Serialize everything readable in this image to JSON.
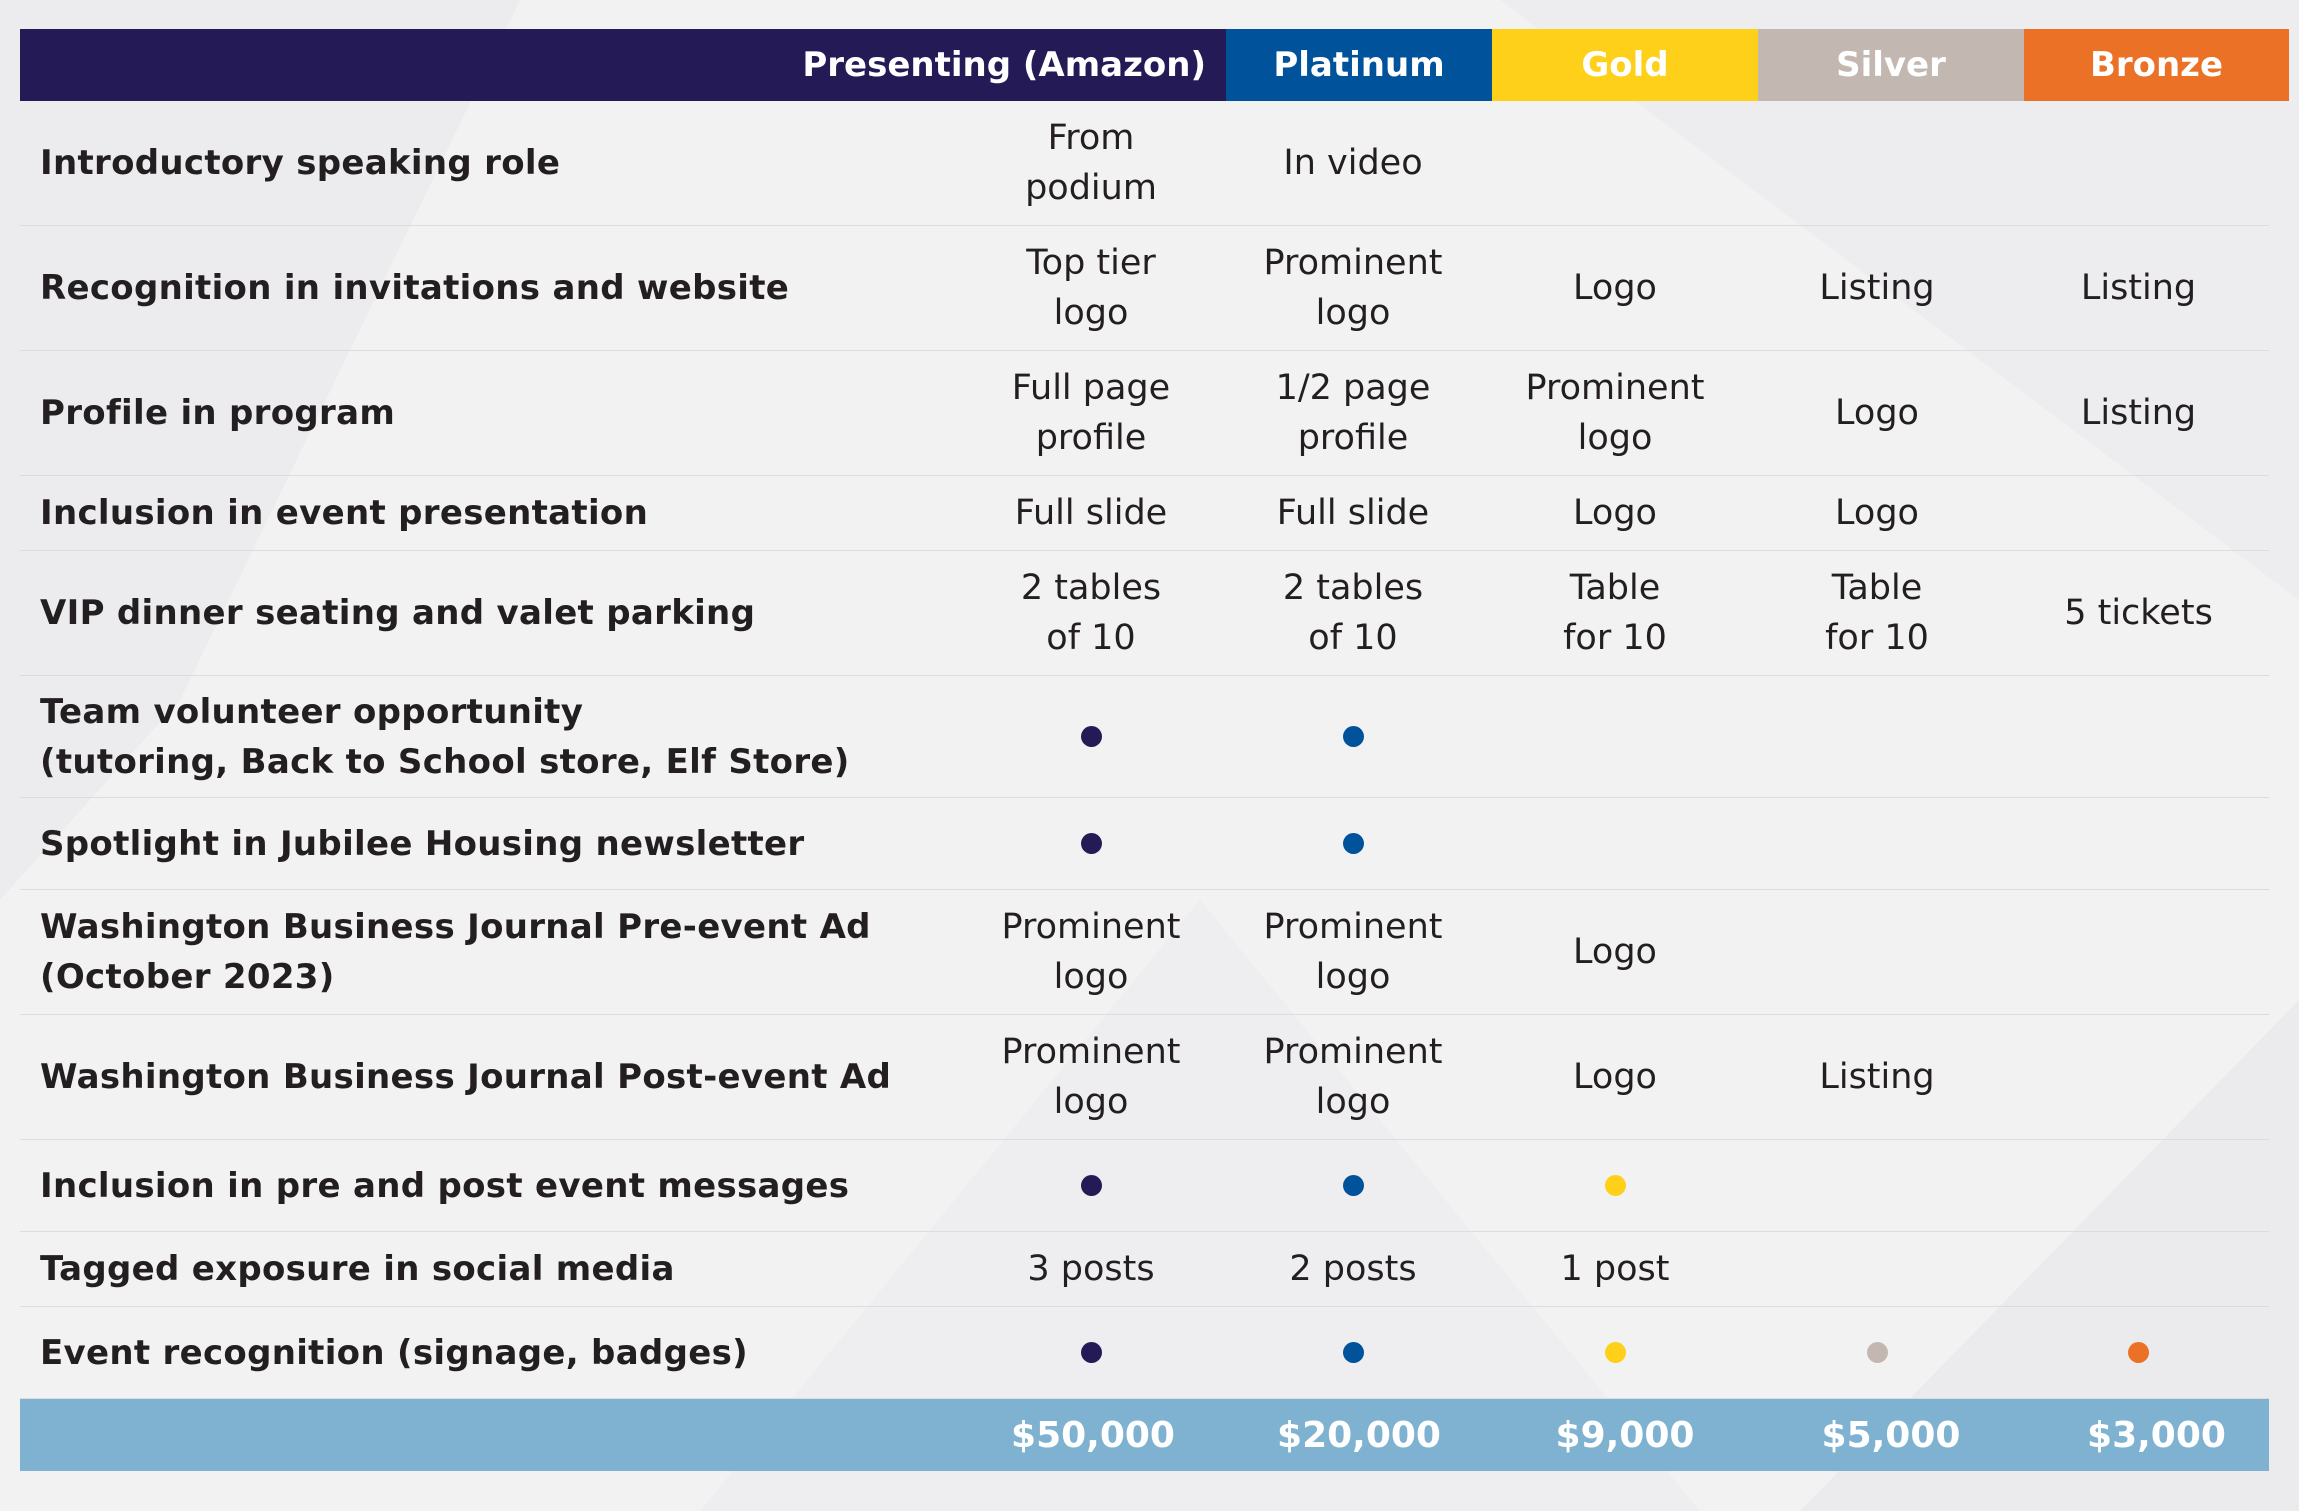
{
  "tiers": [
    {
      "key": "presenting",
      "label": "Presenting (Amazon)",
      "color": "#241a56",
      "price": "$50,000"
    },
    {
      "key": "platinum",
      "label": "Platinum",
      "color": "#00529b",
      "price": "$20,000"
    },
    {
      "key": "gold",
      "label": "Gold",
      "color": "#ffd01a",
      "price": "$9,000"
    },
    {
      "key": "silver",
      "label": "Silver",
      "color": "#c3b8b1",
      "price": "$5,000"
    },
    {
      "key": "bronze",
      "label": "Bronze",
      "color": "#ea7125",
      "price": "$3,000"
    }
  ],
  "rows": [
    {
      "label": "Introductory speaking role",
      "cells": [
        "From\npodium",
        "In video",
        "",
        "",
        ""
      ]
    },
    {
      "label": "Recognition in invitations and website",
      "cells": [
        "Top tier\nlogo",
        "Prominent\nlogo",
        "Logo",
        "Listing",
        "Listing"
      ]
    },
    {
      "label": "Profile in program",
      "cells": [
        "Full page\nprofile",
        "1/2 page\nprofile",
        "Prominent\nlogo",
        "Logo",
        "Listing"
      ]
    },
    {
      "label": "Inclusion in event presentation",
      "cells": [
        "Full slide",
        "Full slide",
        "Logo",
        "Logo",
        ""
      ]
    },
    {
      "label": "VIP dinner seating and valet parking",
      "cells": [
        "2 tables\nof 10",
        "2 tables\nof 10",
        "Table\nfor 10",
        "Table\nfor 10",
        "5 tickets"
      ]
    },
    {
      "label": "Team volunteer opportunity\n(tutoring, Back to School store, Elf Store)",
      "cells": [
        "•",
        "•",
        "",
        "",
        ""
      ]
    },
    {
      "label": "Spotlight in Jubilee Housing newsletter",
      "cells": [
        "•",
        "•",
        "",
        "",
        ""
      ]
    },
    {
      "label": "Washington Business Journal Pre-event Ad\n(October 2023)",
      "cells": [
        "Prominent\nlogo",
        "Prominent\nlogo",
        "Logo",
        "",
        ""
      ]
    },
    {
      "label": "Washington Business Journal Post-event Ad",
      "cells": [
        "Prominent\nlogo",
        "Prominent\nlogo",
        "Logo",
        "Listing",
        ""
      ]
    },
    {
      "label": "Inclusion in pre and post event messages",
      "cells": [
        "•",
        "•",
        "•",
        "",
        ""
      ]
    },
    {
      "label": "Tagged exposure in social media",
      "cells": [
        "3 posts",
        "2 posts",
        "1 post",
        "",
        ""
      ]
    },
    {
      "label": "Event recognition (signage, badges)",
      "cells": [
        "•",
        "•",
        "•",
        "•",
        "•"
      ]
    }
  ]
}
